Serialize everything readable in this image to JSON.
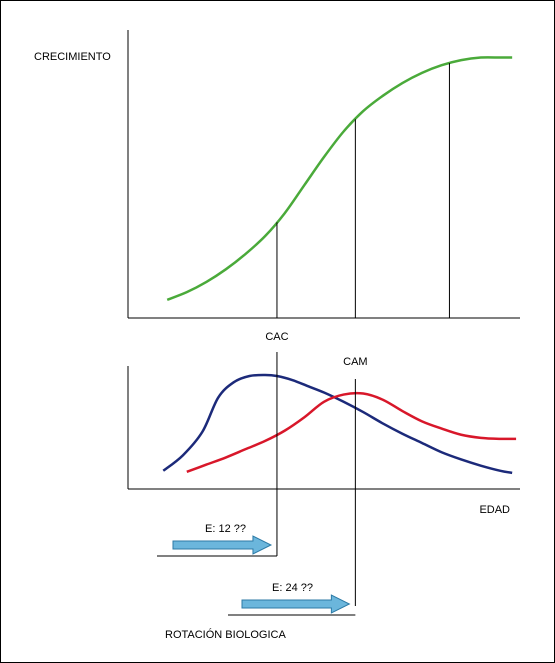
{
  "chart_data": [
    {
      "type": "line",
      "ylabel": "CRECIMIENTO",
      "xlabel": "",
      "colors": {
        "curve": "#4aaa3a"
      },
      "series": [
        {
          "x": [
            0.1,
            0.15,
            0.2,
            0.25,
            0.3,
            0.35,
            0.4,
            0.45,
            0.5,
            0.55,
            0.6,
            0.65,
            0.7,
            0.75,
            0.8,
            0.85,
            0.9,
            0.95,
            0.98
          ],
          "values": [
            0.04,
            0.07,
            0.11,
            0.16,
            0.22,
            0.29,
            0.38,
            0.49,
            0.6,
            0.7,
            0.78,
            0.84,
            0.89,
            0.93,
            0.96,
            0.98,
            0.99,
            0.99,
            0.99
          ]
        }
      ],
      "reference_x": [
        0.38,
        0.58,
        0.82
      ],
      "xlim": [
        0,
        1
      ],
      "ylim": [
        0,
        1
      ]
    },
    {
      "type": "line",
      "xlabel": "EDAD",
      "ylabel": "",
      "series": [
        {
          "color": "#1c2a7a",
          "x": [
            0.09,
            0.14,
            0.19,
            0.23,
            0.27,
            0.31,
            0.35,
            0.38,
            0.42,
            0.46,
            0.5,
            0.55,
            0.6,
            0.65,
            0.7,
            0.75,
            0.8,
            0.85,
            0.9,
            0.95,
            0.98
          ],
          "values": [
            0.07,
            0.22,
            0.45,
            0.78,
            0.93,
            0.99,
            1.0,
            0.99,
            0.95,
            0.89,
            0.83,
            0.74,
            0.64,
            0.53,
            0.43,
            0.34,
            0.25,
            0.18,
            0.12,
            0.07,
            0.05
          ]
        },
        {
          "color": "#d8172a",
          "x": [
            0.15,
            0.2,
            0.25,
            0.3,
            0.35,
            0.4,
            0.45,
            0.5,
            0.55,
            0.6,
            0.65,
            0.7,
            0.75,
            0.8,
            0.85,
            0.9,
            0.95,
            0.99
          ],
          "values": [
            0.06,
            0.13,
            0.2,
            0.28,
            0.36,
            0.46,
            0.59,
            0.74,
            0.81,
            0.82,
            0.76,
            0.65,
            0.55,
            0.48,
            0.42,
            0.39,
            0.38,
            0.38
          ]
        }
      ],
      "reference_x": [
        0.38,
        0.58
      ],
      "annotations": [
        "CAC",
        "CAM"
      ],
      "xlim": [
        0,
        1
      ],
      "ylim": [
        0,
        1
      ]
    }
  ],
  "arrows": [
    {
      "label": "E: 12 ??",
      "end_x": 0.38
    },
    {
      "label": "E: 24 ??",
      "end_x": 0.58
    }
  ],
  "footer": "ROTACIÓN BIOLOGICA",
  "colors": {
    "arrow_fill": "#6bb6dc",
    "arrow_stroke": "#2c7aa6"
  }
}
